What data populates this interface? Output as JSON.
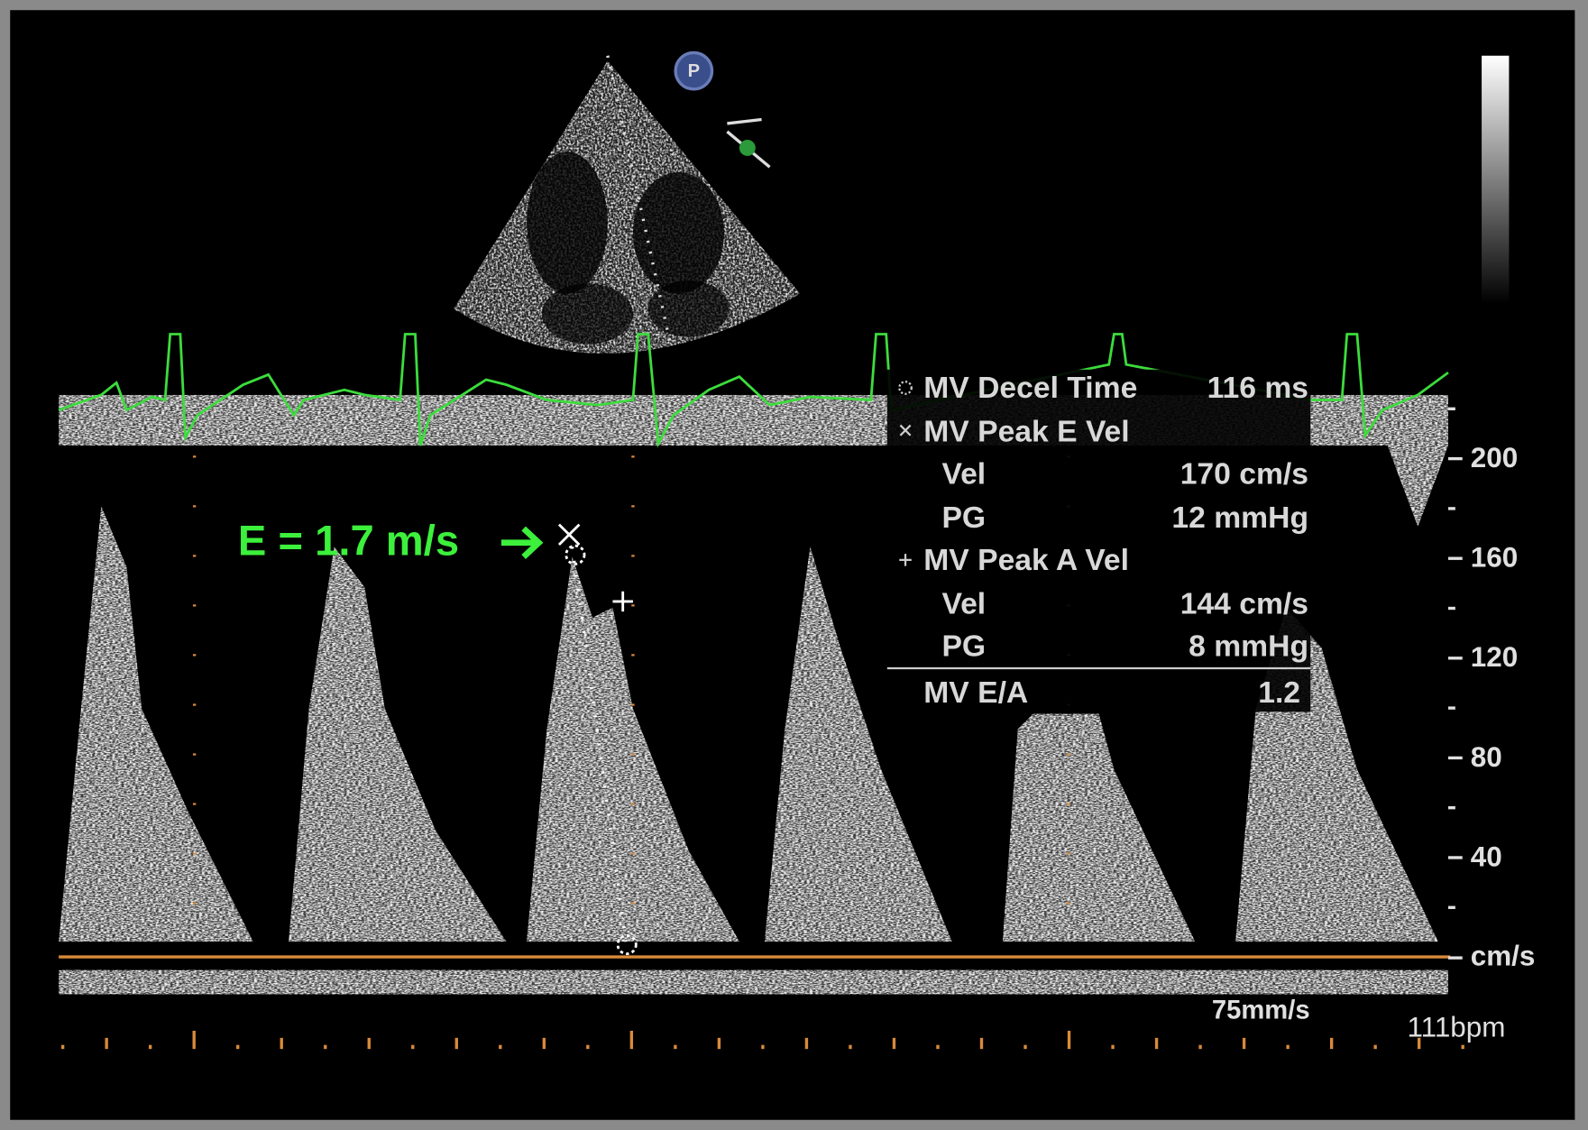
{
  "probe_marker": "P",
  "annotation": "E = 1.7 m/s",
  "measurements": {
    "rows": [
      {
        "label": "MV Decel Time",
        "value": "116 ms"
      },
      {
        "label": "MV Peak E Vel"
      },
      {
        "label": "Vel",
        "value": "170 cm/s"
      },
      {
        "label": "PG",
        "value": "12 mmHg"
      },
      {
        "label": "MV Peak A Vel"
      },
      {
        "label": "Vel",
        "value": "144 cm/s"
      },
      {
        "label": "PG",
        "value": "8 mmHg"
      }
    ],
    "result": {
      "label": "MV E/A",
      "value": "1.2"
    }
  },
  "velocity_scale": {
    "labels": [
      "200",
      "160",
      "120",
      "80",
      "40"
    ],
    "unit": "cm/s"
  },
  "sweep_speed": "75mm/s",
  "heart_rate": "111bpm"
}
